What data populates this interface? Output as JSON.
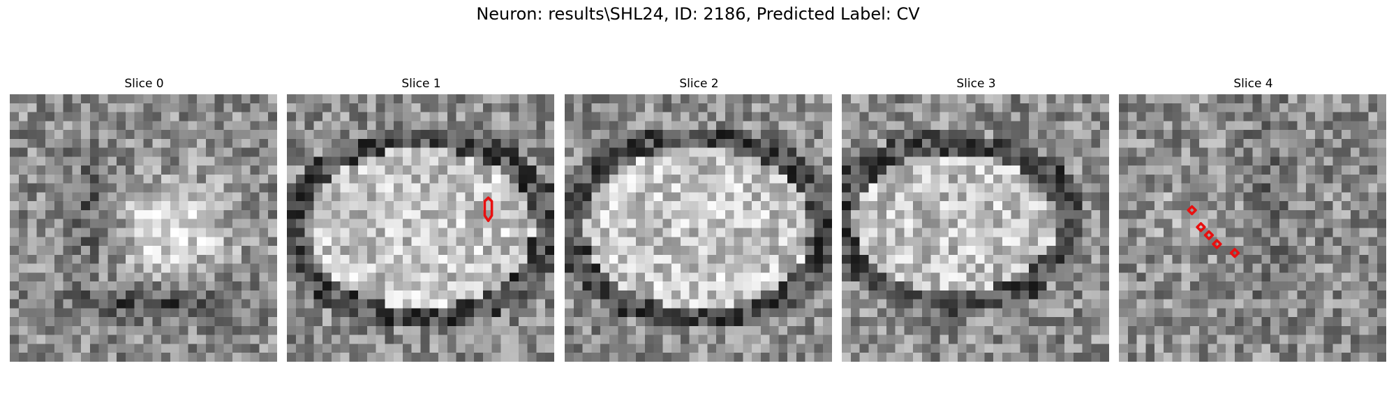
{
  "figure": {
    "title": "Neuron: results\\SHL24, ID: 2186, Predicted Label: CV"
  },
  "image": {
    "grid_size": 30,
    "colormap": "gray",
    "roi_color": "#e81010"
  },
  "panels": [
    {
      "title": "Slice 0",
      "pattern": "blob-right",
      "seed": 11
    },
    {
      "title": "Slice 1",
      "pattern": "ellipse",
      "seed": 23
    },
    {
      "title": "Slice 2",
      "pattern": "ellipse",
      "seed": 37
    },
    {
      "title": "Slice 3",
      "pattern": "ellipse-left",
      "seed": 41
    },
    {
      "title": "Slice 4",
      "pattern": "faint",
      "seed": 59
    }
  ]
}
